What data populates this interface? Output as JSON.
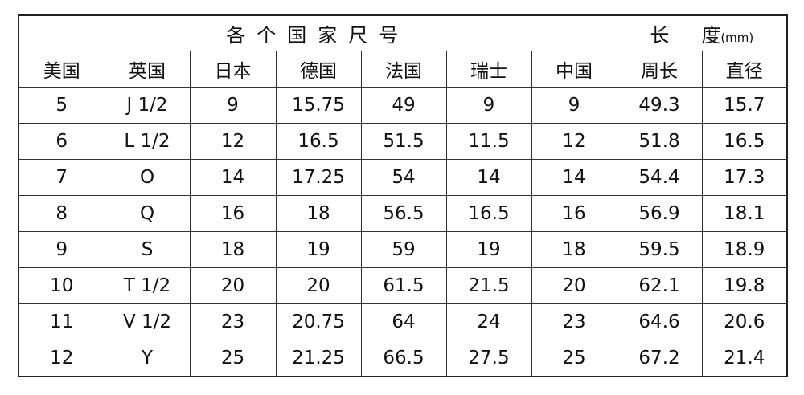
{
  "header": {
    "group_title": "各个国家尺号",
    "length_title": "长",
    "length_title2": "度",
    "length_unit": "(mm)",
    "columns": [
      "美国",
      "英国",
      "日本",
      "德国",
      "法国",
      "瑞士",
      "中国",
      "周长",
      "直径"
    ]
  },
  "rows": [
    [
      "5",
      "J 1/2",
      "9",
      "15.75",
      "49",
      "9",
      "9",
      "49.3",
      "15.7"
    ],
    [
      "6",
      "L 1/2",
      "12",
      "16.5",
      "51.5",
      "11.5",
      "12",
      "51.8",
      "16.5"
    ],
    [
      "7",
      "O",
      "14",
      "17.25",
      "54",
      "14",
      "14",
      "54.4",
      "17.3"
    ],
    [
      "8",
      "Q",
      "16",
      "18",
      "56.5",
      "16.5",
      "16",
      "56.9",
      "18.1"
    ],
    [
      "9",
      "S",
      "18",
      "19",
      "59",
      "19",
      "18",
      "59.5",
      "18.9"
    ],
    [
      "10",
      "T 1/2",
      "20",
      "20",
      "61.5",
      "21.5",
      "20",
      "62.1",
      "19.8"
    ],
    [
      "11",
      "V 1/2",
      "23",
      "20.75",
      "64",
      "24",
      "23",
      "64.6",
      "20.6"
    ],
    [
      "12",
      "Y",
      "25",
      "21.25",
      "66.5",
      "27.5",
      "25",
      "67.2",
      "21.4"
    ]
  ]
}
